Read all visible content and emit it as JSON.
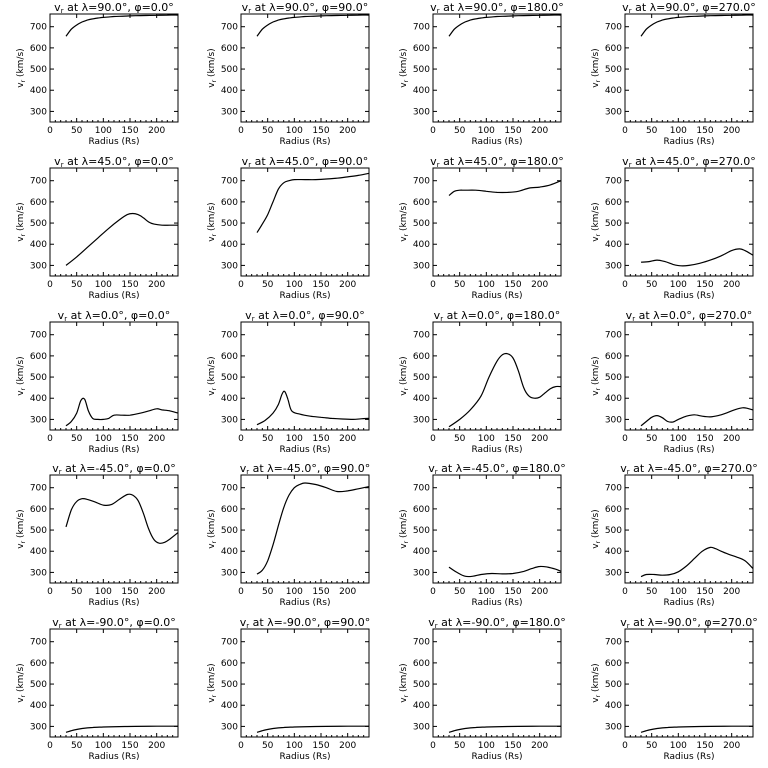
{
  "figure": {
    "xlabel": "Radius (Rs)",
    "ylabel": "v_r (km/s)",
    "xlim": [
      0,
      240
    ],
    "ylim": [
      250,
      760
    ],
    "xticks": [
      0,
      50,
      100,
      150,
      200
    ],
    "yticks": [
      300,
      400,
      500,
      600,
      700
    ],
    "line_color": "#000000"
  },
  "chart_data": [
    {
      "type": "line",
      "title": "v_r at λ=90.0°, φ=0.0°",
      "lambda": "90.0",
      "phi": "0.0",
      "xlabel": "Radius (Rs)",
      "ylabel": "v_r (km/s)",
      "xlim": [
        0,
        240
      ],
      "ylim": [
        250,
        760
      ],
      "x": [
        30,
        40,
        50,
        60,
        70,
        80,
        90,
        100,
        120,
        140,
        160,
        180,
        200,
        220,
        240
      ],
      "y": [
        655,
        688,
        708,
        722,
        731,
        737,
        741,
        744,
        748,
        750,
        752,
        753,
        754,
        755,
        755
      ]
    },
    {
      "type": "line",
      "title": "v_r at λ=90.0°, φ=90.0°",
      "lambda": "90.0",
      "phi": "90.0",
      "xlabel": "Radius (Rs)",
      "ylabel": "v_r (km/s)",
      "xlim": [
        0,
        240
      ],
      "ylim": [
        250,
        760
      ],
      "x": [
        30,
        40,
        50,
        60,
        70,
        80,
        90,
        100,
        120,
        140,
        160,
        180,
        200,
        220,
        240
      ],
      "y": [
        655,
        688,
        708,
        722,
        731,
        737,
        741,
        744,
        748,
        750,
        752,
        753,
        754,
        755,
        755
      ]
    },
    {
      "type": "line",
      "title": "v_r at λ=90.0°, φ=180.0°",
      "lambda": "90.0",
      "phi": "180.0",
      "xlabel": "Radius (Rs)",
      "ylabel": "v_r (km/s)",
      "xlim": [
        0,
        240
      ],
      "ylim": [
        250,
        760
      ],
      "x": [
        30,
        40,
        50,
        60,
        70,
        80,
        90,
        100,
        120,
        140,
        160,
        180,
        200,
        220,
        240
      ],
      "y": [
        655,
        688,
        708,
        722,
        731,
        737,
        741,
        744,
        748,
        750,
        752,
        753,
        754,
        755,
        755
      ]
    },
    {
      "type": "line",
      "title": "v_r at λ=90.0°, φ=270.0°",
      "lambda": "90.0",
      "phi": "270.0",
      "xlabel": "Radius (Rs)",
      "ylabel": "v_r (km/s)",
      "xlim": [
        0,
        240
      ],
      "ylim": [
        250,
        760
      ],
      "x": [
        30,
        40,
        50,
        60,
        70,
        80,
        90,
        100,
        120,
        140,
        160,
        180,
        200,
        220,
        240
      ],
      "y": [
        655,
        688,
        708,
        722,
        731,
        737,
        741,
        744,
        748,
        750,
        752,
        753,
        754,
        755,
        755
      ]
    },
    {
      "type": "line",
      "title": "v_r at λ=45.0°, φ=0.0°",
      "lambda": "45.0",
      "phi": "0.0",
      "xlabel": "Radius (Rs)",
      "ylabel": "v_r (km/s)",
      "xlim": [
        0,
        240
      ],
      "ylim": [
        250,
        760
      ],
      "x": [
        30,
        50,
        70,
        90,
        110,
        130,
        145,
        155,
        165,
        175,
        185,
        195,
        210,
        225,
        240
      ],
      "y": [
        300,
        340,
        385,
        430,
        475,
        515,
        540,
        545,
        540,
        525,
        505,
        495,
        490,
        490,
        490
      ]
    },
    {
      "type": "line",
      "title": "v_r at λ=45.0°, φ=90.0°",
      "lambda": "45.0",
      "phi": "90.0",
      "xlabel": "Radius (Rs)",
      "ylabel": "v_r (km/s)",
      "xlim": [
        0,
        240
      ],
      "ylim": [
        250,
        760
      ],
      "x": [
        30,
        40,
        50,
        60,
        70,
        80,
        90,
        100,
        120,
        140,
        160,
        180,
        200,
        220,
        240
      ],
      "y": [
        455,
        495,
        540,
        600,
        660,
        690,
        700,
        705,
        705,
        705,
        708,
        712,
        718,
        725,
        735
      ]
    },
    {
      "type": "line",
      "title": "v_r at λ=45.0°, φ=180.0°",
      "lambda": "45.0",
      "phi": "180.0",
      "xlabel": "Radius (Rs)",
      "ylabel": "v_r (km/s)",
      "xlim": [
        0,
        240
      ],
      "ylim": [
        250,
        760
      ],
      "x": [
        30,
        40,
        50,
        60,
        80,
        100,
        120,
        140,
        160,
        180,
        200,
        220,
        240
      ],
      "y": [
        630,
        650,
        655,
        655,
        655,
        650,
        645,
        645,
        650,
        665,
        670,
        680,
        700
      ]
    },
    {
      "type": "line",
      "title": "v_r at λ=45.0°, φ=270.0°",
      "lambda": "45.0",
      "phi": "270.0",
      "xlabel": "Radius (Rs)",
      "ylabel": "v_r (km/s)",
      "xlim": [
        0,
        240
      ],
      "ylim": [
        250,
        760
      ],
      "x": [
        30,
        45,
        60,
        75,
        90,
        105,
        120,
        140,
        160,
        180,
        200,
        215,
        225,
        240
      ],
      "y": [
        315,
        318,
        325,
        318,
        305,
        298,
        300,
        310,
        325,
        345,
        370,
        378,
        370,
        348
      ]
    },
    {
      "type": "line",
      "title": "v_r at λ=0.0°, φ=0.0°",
      "lambda": "0.0",
      "phi": "0.0",
      "xlabel": "Radius (Rs)",
      "ylabel": "v_r (km/s)",
      "xlim": [
        0,
        240
      ],
      "ylim": [
        250,
        760
      ],
      "x": [
        30,
        40,
        50,
        58,
        65,
        72,
        80,
        90,
        100,
        110,
        120,
        135,
        150,
        170,
        185,
        200,
        210,
        225,
        240
      ],
      "y": [
        270,
        290,
        330,
        390,
        395,
        340,
        305,
        300,
        300,
        305,
        320,
        320,
        320,
        330,
        340,
        350,
        345,
        340,
        330
      ]
    },
    {
      "type": "line",
      "title": "v_r at λ=0.0°, φ=90.0°",
      "lambda": "0.0",
      "phi": "90.0",
      "xlabel": "Radius (Rs)",
      "ylabel": "v_r (km/s)",
      "xlim": [
        0,
        240
      ],
      "ylim": [
        250,
        760
      ],
      "x": [
        30,
        45,
        60,
        70,
        77,
        82,
        88,
        95,
        110,
        130,
        150,
        170,
        190,
        210,
        225,
        240
      ],
      "y": [
        275,
        295,
        330,
        370,
        420,
        432,
        395,
        340,
        325,
        315,
        310,
        305,
        302,
        300,
        303,
        305
      ]
    },
    {
      "type": "line",
      "title": "v_r at λ=0.0°, φ=180.0°",
      "lambda": "0.0",
      "phi": "180.0",
      "xlabel": "Radius (Rs)",
      "ylabel": "v_r (km/s)",
      "xlim": [
        0,
        240
      ],
      "ylim": [
        250,
        760
      ],
      "x": [
        30,
        50,
        70,
        90,
        105,
        120,
        130,
        140,
        150,
        160,
        170,
        180,
        190,
        200,
        210,
        220,
        230,
        240
      ],
      "y": [
        265,
        300,
        345,
        410,
        500,
        575,
        605,
        610,
        590,
        530,
        450,
        410,
        400,
        405,
        425,
        445,
        455,
        455
      ]
    },
    {
      "type": "line",
      "title": "v_r at λ=0.0°, φ=270.0°",
      "lambda": "0.0",
      "phi": "270.0",
      "xlabel": "Radius (Rs)",
      "ylabel": "v_r (km/s)",
      "xlim": [
        0,
        240
      ],
      "ylim": [
        250,
        760
      ],
      "x": [
        30,
        40,
        50,
        60,
        70,
        80,
        90,
        100,
        115,
        130,
        145,
        160,
        175,
        190,
        205,
        220,
        230,
        240
      ],
      "y": [
        270,
        290,
        310,
        318,
        308,
        290,
        288,
        300,
        315,
        322,
        315,
        312,
        318,
        330,
        345,
        355,
        352,
        345
      ]
    },
    {
      "type": "line",
      "title": "v_r at λ=-45.0°, φ=0.0°",
      "lambda": "-45.0",
      "phi": "0.0",
      "xlabel": "Radius (Rs)",
      "ylabel": "v_r (km/s)",
      "xlim": [
        0,
        240
      ],
      "ylim": [
        250,
        760
      ],
      "x": [
        30,
        40,
        50,
        60,
        70,
        85,
        100,
        115,
        130,
        145,
        155,
        165,
        175,
        185,
        195,
        205,
        215,
        225,
        240
      ],
      "y": [
        515,
        595,
        635,
        648,
        645,
        632,
        618,
        620,
        645,
        668,
        665,
        640,
        580,
        505,
        455,
        438,
        442,
        458,
        488
      ]
    },
    {
      "type": "line",
      "title": "v_r at λ=-45.0°, φ=90.0°",
      "lambda": "-45.0",
      "phi": "90.0",
      "xlabel": "Radius (Rs)",
      "ylabel": "v_r (km/s)",
      "xlim": [
        0,
        240
      ],
      "ylim": [
        250,
        760
      ],
      "x": [
        30,
        40,
        50,
        60,
        70,
        80,
        90,
        100,
        110,
        120,
        140,
        160,
        180,
        200,
        220,
        240
      ],
      "y": [
        292,
        310,
        355,
        430,
        520,
        605,
        665,
        700,
        715,
        722,
        715,
        700,
        682,
        685,
        695,
        705
      ]
    },
    {
      "type": "line",
      "title": "v_r at λ=-45.0°, φ=180.0°",
      "lambda": "-45.0",
      "phi": "180.0",
      "xlabel": "Radius (Rs)",
      "ylabel": "v_r (km/s)",
      "xlim": [
        0,
        240
      ],
      "ylim": [
        250,
        760
      ],
      "x": [
        30,
        45,
        60,
        75,
        90,
        110,
        130,
        150,
        170,
        185,
        200,
        215,
        230,
        240
      ],
      "y": [
        325,
        300,
        282,
        282,
        290,
        295,
        293,
        295,
        305,
        318,
        328,
        325,
        315,
        305
      ]
    },
    {
      "type": "line",
      "title": "v_r at λ=-45.0°, φ=270.0°",
      "lambda": "-45.0",
      "phi": "270.0",
      "xlabel": "Radius (Rs)",
      "ylabel": "v_r (km/s)",
      "xlim": [
        0,
        240
      ],
      "ylim": [
        250,
        760
      ],
      "x": [
        30,
        40,
        55,
        70,
        85,
        100,
        115,
        130,
        145,
        160,
        170,
        180,
        195,
        210,
        225,
        240
      ],
      "y": [
        280,
        290,
        290,
        287,
        290,
        303,
        330,
        365,
        400,
        418,
        412,
        400,
        385,
        372,
        355,
        318
      ]
    },
    {
      "type": "line",
      "title": "v_r at λ=-90.0°, φ=0.0°",
      "lambda": "-90.0",
      "phi": "0.0",
      "xlabel": "Radius (Rs)",
      "ylabel": "v_r (km/s)",
      "xlim": [
        0,
        240
      ],
      "ylim": [
        250,
        760
      ],
      "x": [
        30,
        45,
        60,
        80,
        100,
        130,
        160,
        200,
        240
      ],
      "y": [
        272,
        283,
        290,
        295,
        297,
        299,
        300,
        301,
        301
      ]
    },
    {
      "type": "line",
      "title": "v_r at λ=-90.0°, φ=90.0°",
      "lambda": "-90.0",
      "phi": "90.0",
      "xlabel": "Radius (Rs)",
      "ylabel": "v_r (km/s)",
      "xlim": [
        0,
        240
      ],
      "ylim": [
        250,
        760
      ],
      "x": [
        30,
        45,
        60,
        80,
        100,
        130,
        160,
        200,
        240
      ],
      "y": [
        272,
        283,
        290,
        295,
        297,
        299,
        300,
        301,
        301
      ]
    },
    {
      "type": "line",
      "title": "v_r at λ=-90.0°, φ=180.0°",
      "lambda": "-90.0",
      "phi": "180.0",
      "xlabel": "Radius (Rs)",
      "ylabel": "v_r (km/s)",
      "xlim": [
        0,
        240
      ],
      "ylim": [
        250,
        760
      ],
      "x": [
        30,
        45,
        60,
        80,
        100,
        130,
        160,
        200,
        240
      ],
      "y": [
        272,
        283,
        290,
        295,
        297,
        299,
        300,
        301,
        301
      ]
    },
    {
      "type": "line",
      "title": "v_r at λ=-90.0°, φ=270.0°",
      "lambda": "-90.0",
      "phi": "270.0",
      "xlabel": "Radius (Rs)",
      "ylabel": "v_r (km/s)",
      "xlim": [
        0,
        240
      ],
      "ylim": [
        250,
        760
      ],
      "x": [
        30,
        45,
        60,
        80,
        100,
        130,
        160,
        200,
        240
      ],
      "y": [
        272,
        283,
        290,
        295,
        297,
        299,
        300,
        301,
        301
      ]
    }
  ]
}
